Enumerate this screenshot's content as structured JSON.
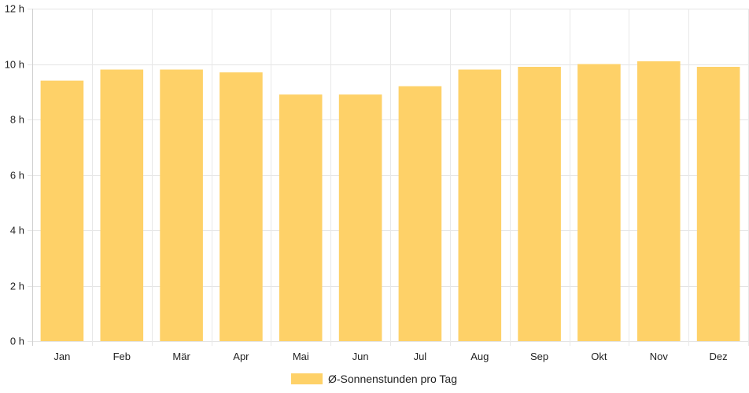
{
  "chart_data": {
    "type": "bar",
    "categories": [
      "Jan",
      "Feb",
      "Mär",
      "Apr",
      "Mai",
      "Jun",
      "Jul",
      "Aug",
      "Sep",
      "Okt",
      "Nov",
      "Dez"
    ],
    "series": [
      {
        "name": "Ø-Sonnenstunden pro Tag",
        "values": [
          9.4,
          9.8,
          9.8,
          9.7,
          8.9,
          8.9,
          9.2,
          9.8,
          9.9,
          10.0,
          10.1,
          9.9
        ],
        "color": "#fed168"
      }
    ],
    "yticks": [
      {
        "value": 0,
        "label": "0 h"
      },
      {
        "value": 2,
        "label": "2 h"
      },
      {
        "value": 4,
        "label": "4 h"
      },
      {
        "value": 6,
        "label": "6 h"
      },
      {
        "value": 8,
        "label": "8 h"
      },
      {
        "value": 10,
        "label": "10 h"
      },
      {
        "value": 12,
        "label": "12 h"
      }
    ],
    "ylim": [
      0,
      12
    ],
    "grid": true,
    "legend": "bottom-center",
    "title": "",
    "xlabel": "",
    "ylabel": ""
  }
}
